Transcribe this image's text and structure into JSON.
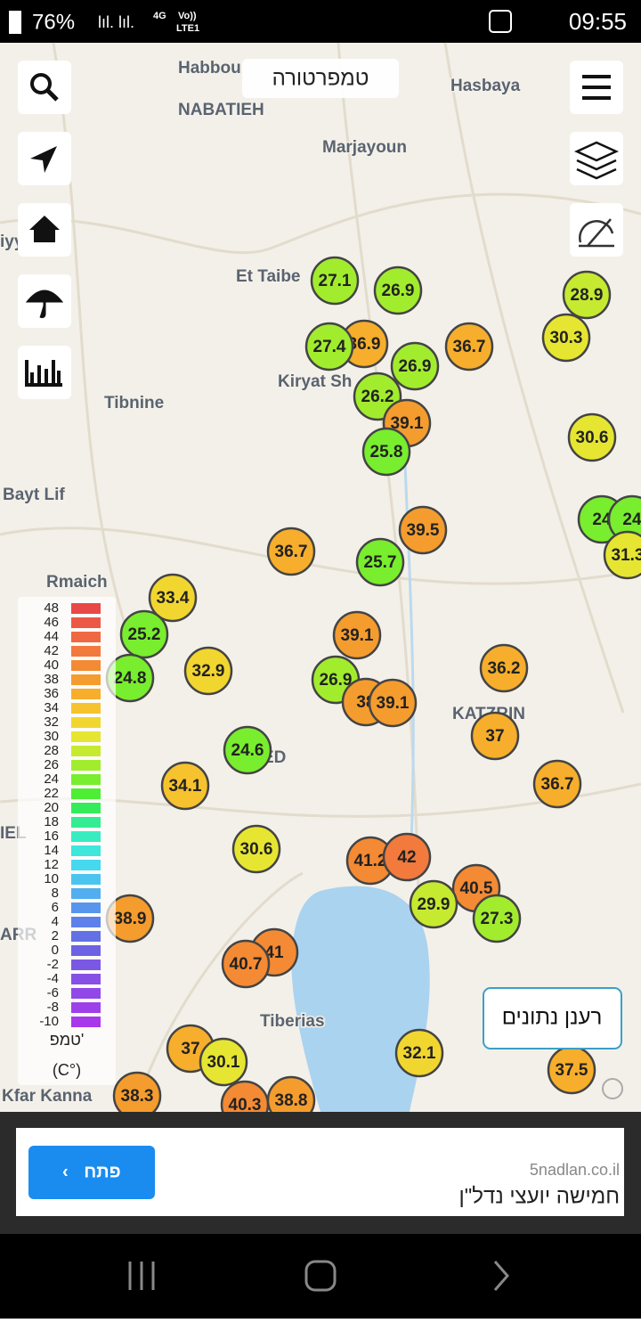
{
  "status_bar": {
    "battery": "76%",
    "volte": "Vo))",
    "network": "4G",
    "lte": "LTE1",
    "time": "09:55"
  },
  "title": "טמפרטורה",
  "places": [
    "Habbou",
    "NABATIEH",
    "Hasbaya",
    "Marjayoun",
    "Et Taibe",
    "Kiryat Sh",
    "Tibnine",
    "Bayt Lif",
    "Rmaich",
    "KATZRIN",
    "ED",
    "IEL",
    "ARR",
    "Tiberias",
    "Kfar Kanna",
    "iyy"
  ],
  "stations": [
    27.1,
    26.9,
    36.9,
    27.4,
    26.9,
    36.7,
    26.2,
    39.1,
    25.8,
    39.5,
    36.7,
    25.7,
    28.9,
    30.3,
    30.6,
    24,
    24,
    31.3,
    33.4,
    25.2,
    24.8,
    32.9,
    39.1,
    26.9,
    38,
    39.1,
    36.2,
    37,
    36.7,
    24.6,
    34.1,
    30.6,
    41.2,
    42,
    40.5,
    29.9,
    27.3,
    38.9,
    41,
    40.7,
    32.1,
    37.5,
    37,
    30.1,
    38.3,
    40.3,
    38.8
  ],
  "legend": {
    "ticks": [
      48,
      46,
      44,
      42,
      40,
      38,
      36,
      34,
      32,
      30,
      28,
      26,
      24,
      22,
      20,
      18,
      16,
      14,
      12,
      10,
      8,
      6,
      4,
      2,
      0,
      -2,
      -4,
      -6,
      -8,
      -10
    ],
    "colors": [
      "#e84848",
      "#ec5846",
      "#f06842",
      "#f27a3c",
      "#f48a34",
      "#f59c2e",
      "#f6ae2c",
      "#f6c22e",
      "#f2d630",
      "#e6e632",
      "#c6ea30",
      "#a2ec2e",
      "#78ee2e",
      "#4eee34",
      "#34ec5a",
      "#34ec92",
      "#38ecc0",
      "#3ee6dc",
      "#46d8ee",
      "#4cc4f0",
      "#52aef0",
      "#5896ee",
      "#5e80ea",
      "#6470e6",
      "#6e62e4",
      "#7a58e4",
      "#8650e6",
      "#9248e8",
      "#9e40ea",
      "#a838ec"
    ],
    "title": "טמפ'",
    "unit": "(C°)"
  },
  "refresh_button": "רענן נתונים",
  "ad": {
    "domain": "5nadlan.co.il",
    "text": "חמישה יועצי נדל\"ן",
    "button": "פתח"
  }
}
